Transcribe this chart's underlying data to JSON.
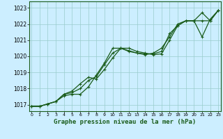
{
  "title": "Graphe pression niveau de la mer (hPa)",
  "bg_color": "#cceeff",
  "grid_color": "#99cccc",
  "line_color": "#1a5c1a",
  "x_ticks": [
    0,
    1,
    2,
    3,
    4,
    5,
    6,
    7,
    8,
    9,
    10,
    11,
    12,
    13,
    14,
    15,
    16,
    17,
    18,
    19,
    20,
    21,
    22,
    23
  ],
  "y_ticks": [
    1017,
    1018,
    1019,
    1020,
    1021,
    1022,
    1023
  ],
  "ylim": [
    1016.6,
    1023.4
  ],
  "xlim": [
    -0.3,
    23.3
  ],
  "series1": [
    1016.9,
    1016.9,
    1017.05,
    1017.2,
    1017.55,
    1017.65,
    1017.65,
    1018.1,
    1018.85,
    1019.6,
    1020.5,
    1020.5,
    1020.3,
    1020.2,
    1020.1,
    1020.2,
    1020.5,
    1021.2,
    1022.0,
    1022.2,
    1022.2,
    1021.2,
    1022.3,
    1022.85
  ],
  "series2": [
    1016.9,
    1016.9,
    1017.05,
    1017.2,
    1017.65,
    1017.85,
    1018.3,
    1018.7,
    1018.6,
    1019.2,
    1019.9,
    1020.5,
    1020.5,
    1020.3,
    1020.2,
    1020.1,
    1020.15,
    1021.0,
    1021.9,
    1022.2,
    1022.2,
    1022.2,
    1022.2,
    1022.85
  ],
  "series3": [
    1016.9,
    1016.9,
    1017.05,
    1017.2,
    1017.65,
    1017.75,
    1018.0,
    1018.5,
    1018.75,
    1019.5,
    1020.2,
    1020.5,
    1020.35,
    1020.2,
    1020.15,
    1020.15,
    1020.3,
    1021.4,
    1021.9,
    1022.2,
    1022.2,
    1022.7,
    1022.2,
    1022.85
  ],
  "title_fontsize": 6.5,
  "tick_fontsize": 5.5,
  "marker_size": 2.5,
  "line_width": 0.9
}
